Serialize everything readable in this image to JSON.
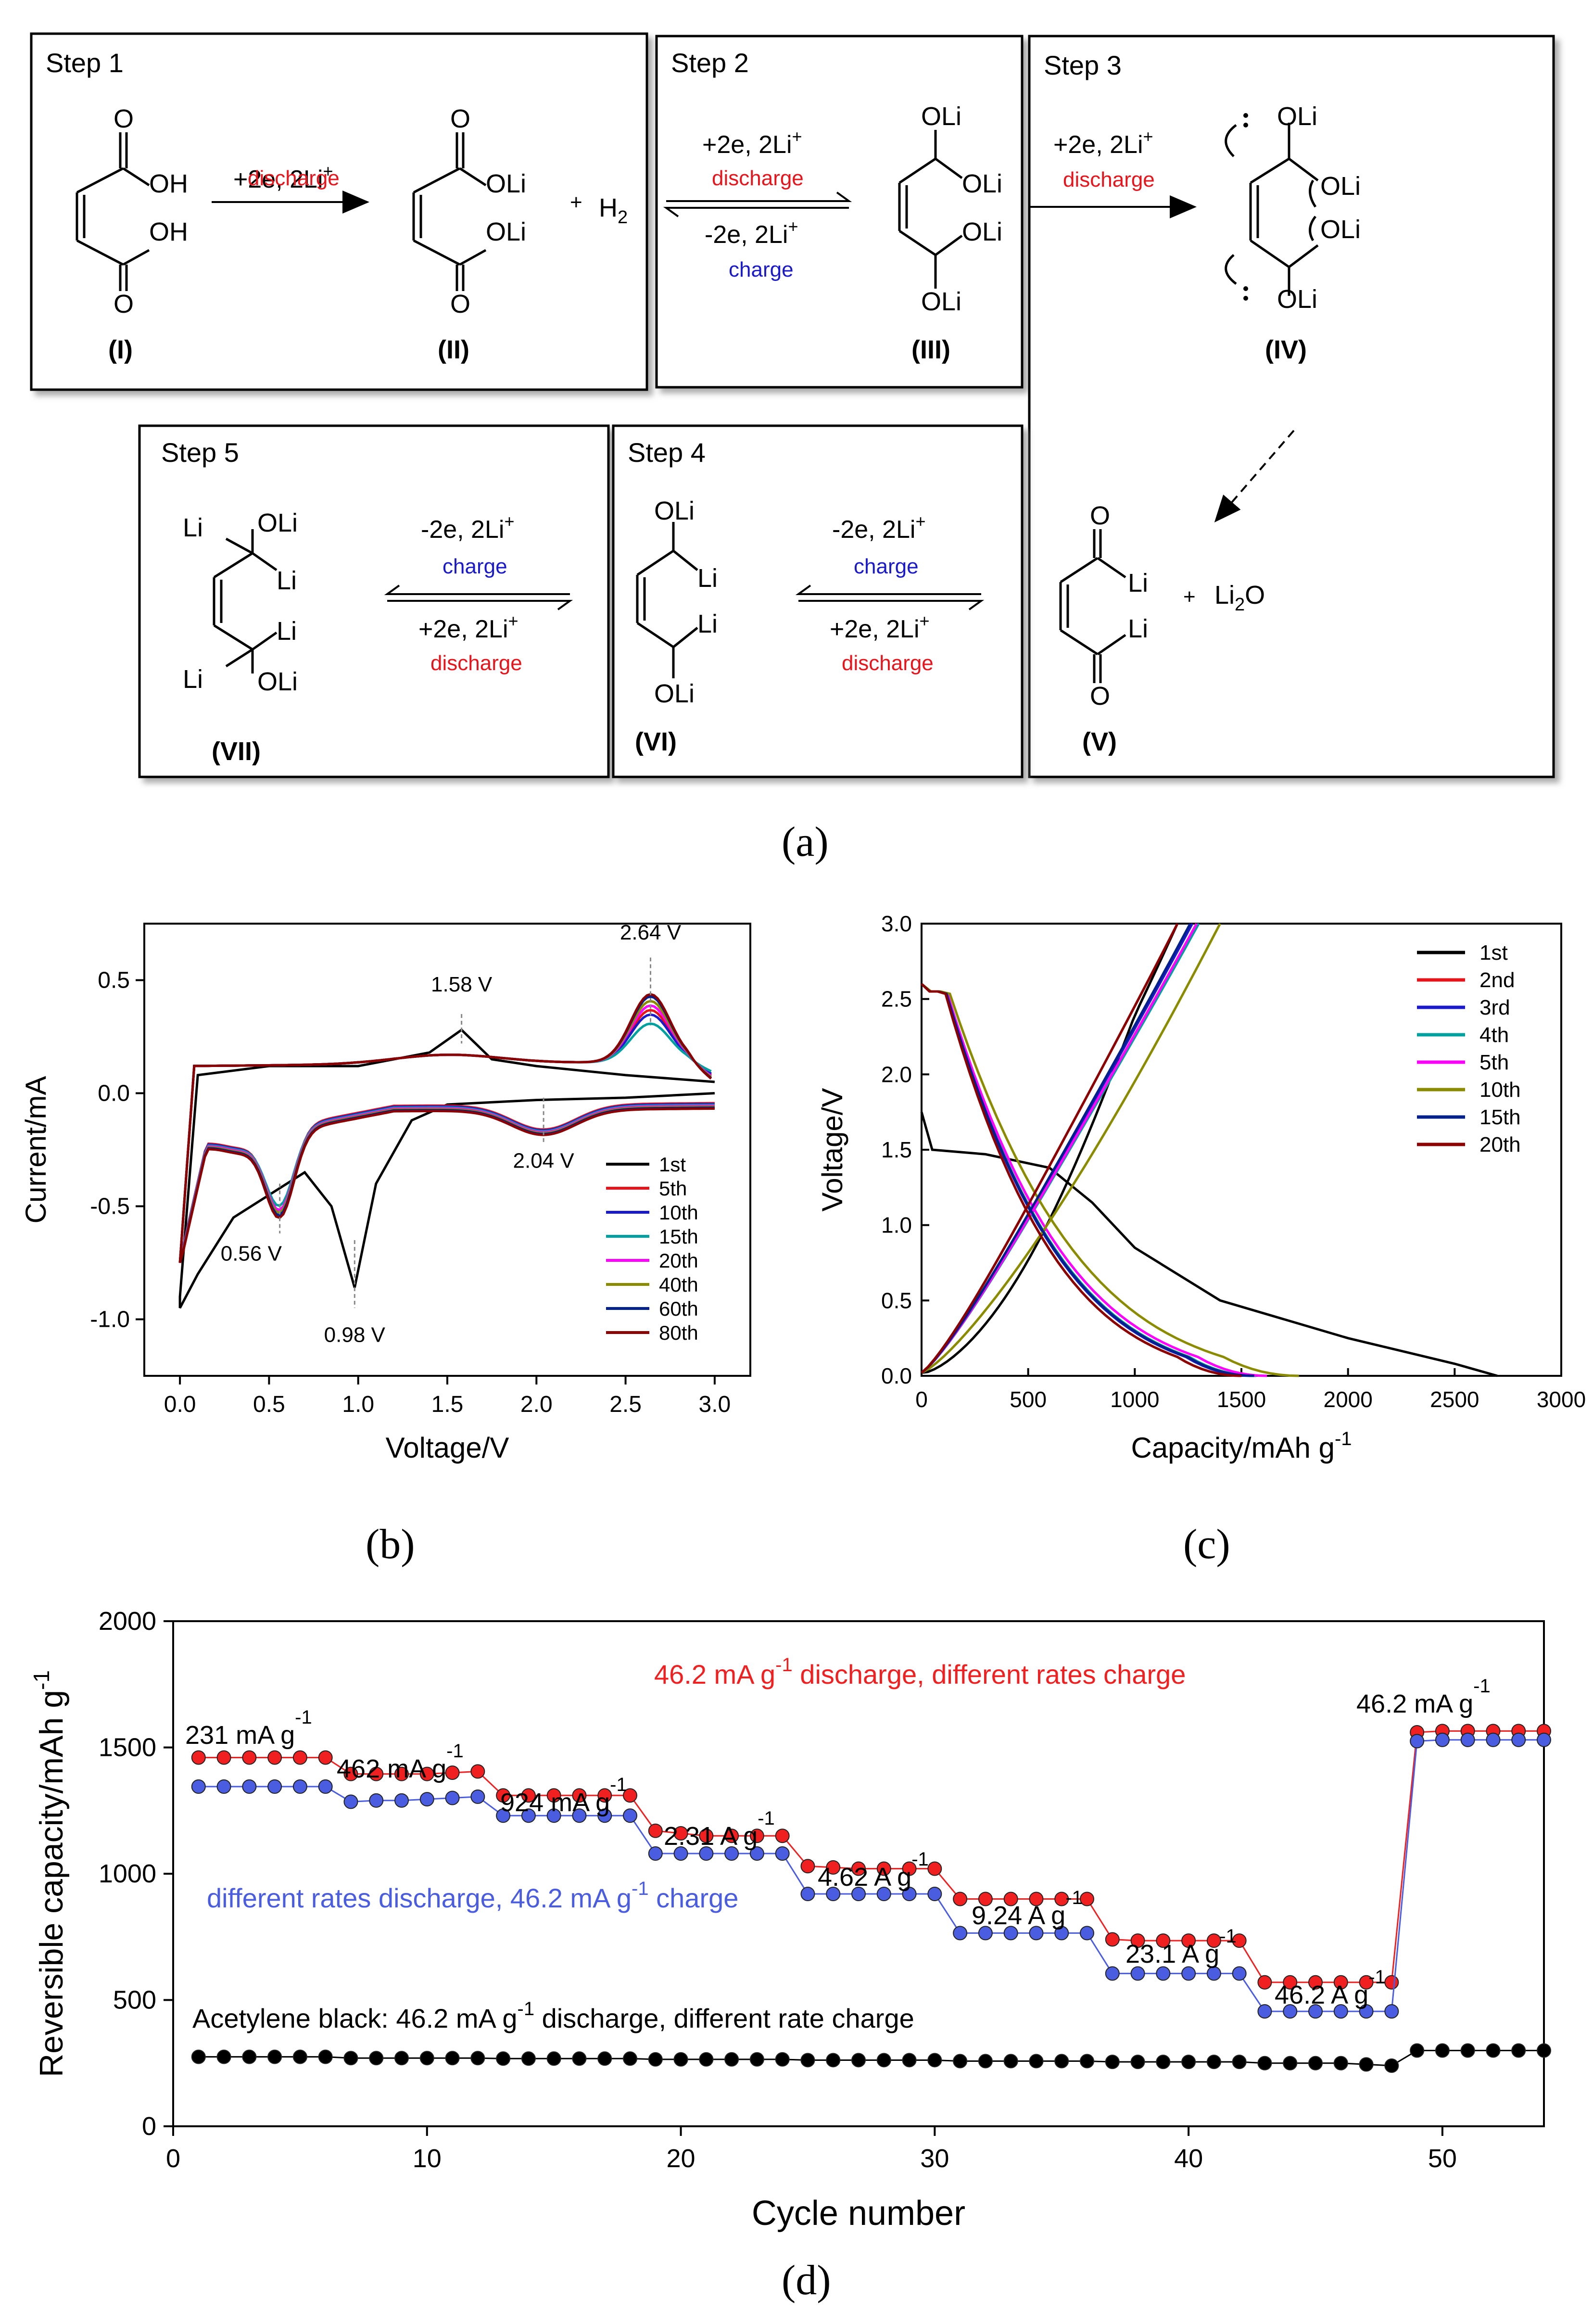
{
  "panel_labels": {
    "a": "(a)",
    "b": "(b)",
    "c": "(c)",
    "d": "(d)"
  },
  "colors": {
    "red": "#e8141c",
    "blue": "#1a1acb",
    "black": "#000000",
    "cyan": "#00a0a0",
    "magenta": "#ff00ff",
    "olive": "#8b8b00",
    "navy": "#00208b",
    "darkred": "#8b0000",
    "d_red": "#f02020",
    "d_blue": "#4a5de0"
  },
  "scheme": {
    "steps": {
      "s1": "Step 1",
      "s2": "Step 2",
      "s3": "Step 3",
      "s4": "Step 4",
      "s5": "Step 5"
    },
    "reactions": {
      "plus2e": "+2e, 2Li",
      "minus2e": "-2e, 2Li",
      "sup_plus": "+",
      "discharge": "discharge",
      "charge": "charge"
    },
    "compounds": {
      "I": "(I)",
      "II": "(II)",
      "III": "(III)",
      "IV": "(IV)",
      "V": "(V)",
      "VI": "(VI)",
      "VII": "(VII)"
    },
    "atoms": {
      "O": "O",
      "OH": "OH",
      "OLi": "OLi",
      "Li": "Li",
      "H2": "H",
      "H2_sub": "2",
      "plus": "+",
      "Li2O_a": "Li",
      "Li2O_sub": "2",
      "Li2O_b": "O"
    }
  },
  "chart_data": [
    {
      "id": "b",
      "type": "line",
      "title": "",
      "xlabel": "Voltage/V",
      "ylabel": "Current/mA",
      "xlim": [
        -0.2,
        3.2
      ],
      "ylim": [
        -1.25,
        0.75
      ],
      "xticks": [
        "0.0",
        "0.5",
        "1.0",
        "1.5",
        "2.0",
        "2.5",
        "3.0"
      ],
      "yticks": [
        "-1.0",
        "-0.5",
        "0.0",
        "0.5"
      ],
      "annotations": [
        "1.58 V",
        "2.64 V",
        "2.04 V",
        "0.56 V",
        "0.98 V"
      ],
      "legend": {
        "position": "bottom-right",
        "entries": [
          "1st",
          "5th",
          "10th",
          "15th",
          "20th",
          "40th",
          "60th",
          "80th"
        ]
      },
      "series": [
        {
          "name": "1st",
          "cathodic": [
            [
              3.0,
              0.0
            ],
            [
              2.5,
              -0.02
            ],
            [
              2.0,
              -0.03
            ],
            [
              1.5,
              -0.05
            ],
            [
              1.3,
              -0.12
            ],
            [
              1.1,
              -0.4
            ],
            [
              0.98,
              -0.86
            ],
            [
              0.85,
              -0.5
            ],
            [
              0.7,
              -0.35
            ],
            [
              0.5,
              -0.45
            ],
            [
              0.3,
              -0.55
            ],
            [
              0.1,
              -0.8
            ],
            [
              0.0,
              -0.95
            ]
          ],
          "anodic": [
            [
              0.0,
              -0.9
            ],
            [
              0.1,
              0.08
            ],
            [
              0.5,
              0.12
            ],
            [
              1.0,
              0.12
            ],
            [
              1.4,
              0.18
            ],
            [
              1.58,
              0.28
            ],
            [
              1.75,
              0.15
            ],
            [
              2.0,
              0.12
            ],
            [
              2.5,
              0.08
            ],
            [
              3.0,
              0.05
            ]
          ]
        },
        {
          "name": "5th",
          "peak_anodic": 0.38,
          "peak_cathodic": -0.48
        },
        {
          "name": "10th",
          "peak_anodic": 0.36,
          "peak_cathodic": -0.47
        },
        {
          "name": "15th",
          "peak_anodic": 0.32,
          "peak_cathodic": -0.44
        },
        {
          "name": "20th",
          "peak_anodic": 0.4,
          "peak_cathodic": -0.46
        },
        {
          "name": "40th",
          "peak_anodic": 0.42,
          "peak_cathodic": -0.47
        },
        {
          "name": "60th",
          "peak_anodic": 0.44,
          "peak_cathodic": -0.48
        },
        {
          "name": "80th",
          "peak_anodic": 0.45,
          "peak_cathodic": -0.49
        }
      ]
    },
    {
      "id": "c",
      "type": "line",
      "title": "",
      "xlabel": "Capacity/mAh g",
      "xlabel_sup": "-1",
      "ylabel": "Voltage/V",
      "xlim": [
        0,
        3000
      ],
      "ylim": [
        0.0,
        3.0
      ],
      "xticks": [
        "0",
        "500",
        "1000",
        "1500",
        "2000",
        "2500",
        "3000"
      ],
      "yticks": [
        "0.0",
        "0.5",
        "1.0",
        "1.5",
        "2.0",
        "2.5",
        "3.0"
      ],
      "legend": {
        "position": "top-right",
        "entries": [
          "1st",
          "2nd",
          "3rd",
          "4th",
          "5th",
          "10th",
          "15th",
          "20th"
        ]
      },
      "series": [
        {
          "name": "1st",
          "discharge_capacity": 2700,
          "charge_capacity": 1200
        },
        {
          "name": "2nd",
          "discharge_capacity": 1500,
          "charge_capacity": 1200
        },
        {
          "name": "3rd",
          "discharge_capacity": 1550,
          "charge_capacity": 1270
        },
        {
          "name": "4th",
          "discharge_capacity": 1570,
          "charge_capacity": 1300
        },
        {
          "name": "5th",
          "discharge_capacity": 1620,
          "charge_capacity": 1290
        },
        {
          "name": "10th",
          "discharge_capacity": 1770,
          "charge_capacity": 1400
        },
        {
          "name": "15th",
          "discharge_capacity": 1560,
          "charge_capacity": 1260
        },
        {
          "name": "20th",
          "discharge_capacity": 1500,
          "charge_capacity": 1200
        }
      ]
    },
    {
      "id": "d",
      "type": "scatter",
      "title": "",
      "xlabel": "Cycle number",
      "ylabel": "Reversible capacity/mAh g",
      "ylabel_sup": "-1",
      "xlim": [
        0,
        54
      ],
      "ylim": [
        0,
        2000
      ],
      "xticks": [
        "0",
        "10",
        "20",
        "30",
        "40",
        "50"
      ],
      "yticks": [
        "0",
        "500",
        "1000",
        "1500",
        "2000"
      ],
      "rate_labels": [
        {
          "text": "231 mA g",
          "sup": "-1"
        },
        {
          "text": "462 mA g",
          "sup": "-1"
        },
        {
          "text": "924 mA g",
          "sup": "-1"
        },
        {
          "text": "2.31 A g",
          "sup": "-1"
        },
        {
          "text": "4.62 A g",
          "sup": "-1"
        },
        {
          "text": "9.24 A g",
          "sup": "-1"
        },
        {
          "text": "23.1 A g",
          "sup": "-1"
        },
        {
          "text": "46.2 A g",
          "sup": "-1"
        },
        {
          "text": "46.2 mA g",
          "sup": "-1"
        }
      ],
      "series_labels": {
        "red": {
          "a": "46.2 mA g",
          "sup": "-1",
          "b": " discharge, different rates charge"
        },
        "blue": {
          "a": "different rates discharge, 46.2 mA g",
          "sup": "-1",
          "b": " charge"
        },
        "black": {
          "a": "Acetylene black: 46.2 mA g",
          "sup": "-1",
          "b": " discharge, different rate charge"
        }
      },
      "series": [
        {
          "name": "46.2 mA g-1 discharge, different rates charge",
          "color": "red",
          "values": [
            1460,
            1460,
            1460,
            1460,
            1460,
            1460,
            1395,
            1395,
            1395,
            1395,
            1400,
            1405,
            1310,
            1310,
            1310,
            1310,
            1310,
            1310,
            1170,
            1160,
            1150,
            1150,
            1150,
            1150,
            1030,
            1025,
            1020,
            1020,
            1020,
            1020,
            900,
            900,
            900,
            900,
            900,
            900,
            740,
            735,
            735,
            735,
            735,
            735,
            570,
            570,
            570,
            570,
            570,
            570,
            1560,
            1565,
            1565,
            1565,
            1565,
            1565
          ]
        },
        {
          "name": "different rates discharge, 46.2 mA g-1 charge",
          "color": "blue",
          "values": [
            1345,
            1345,
            1345,
            1345,
            1345,
            1345,
            1285,
            1290,
            1290,
            1295,
            1300,
            1305,
            1230,
            1230,
            1230,
            1230,
            1230,
            1230,
            1080,
            1080,
            1080,
            1080,
            1080,
            1080,
            920,
            920,
            920,
            920,
            920,
            920,
            765,
            765,
            765,
            765,
            765,
            765,
            605,
            605,
            605,
            605,
            605,
            605,
            455,
            455,
            455,
            455,
            455,
            455,
            1525,
            1530,
            1530,
            1530,
            1530,
            1530
          ]
        },
        {
          "name": "Acetylene black",
          "color": "black",
          "values": [
            275,
            275,
            275,
            275,
            275,
            275,
            270,
            270,
            270,
            270,
            270,
            270,
            268,
            268,
            268,
            268,
            268,
            268,
            265,
            265,
            265,
            265,
            265,
            265,
            262,
            262,
            262,
            262,
            262,
            262,
            258,
            258,
            258,
            258,
            258,
            258,
            255,
            255,
            255,
            255,
            255,
            255,
            250,
            250,
            250,
            250,
            245,
            240,
            300,
            300,
            300,
            300,
            300,
            300
          ]
        }
      ]
    }
  ]
}
